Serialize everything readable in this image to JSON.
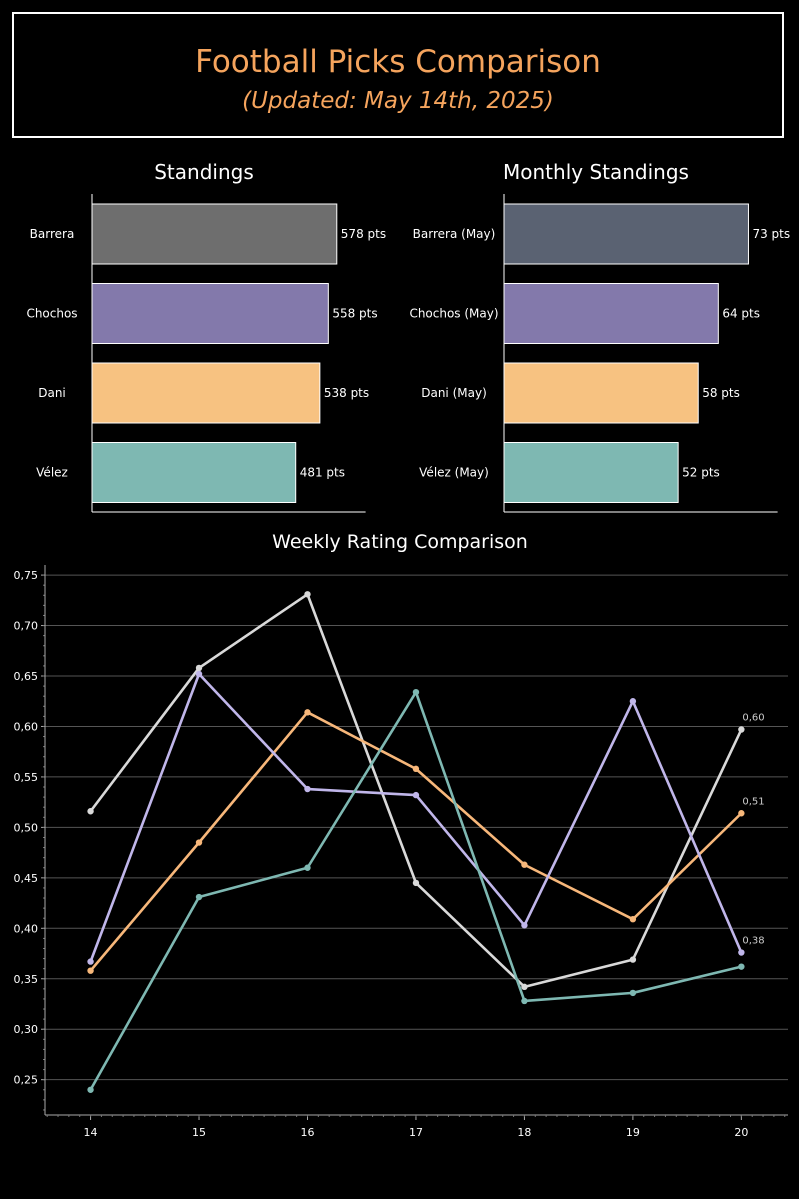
{
  "header": {
    "title": "Football Picks Comparison",
    "subtitle": "(Updated: May 14th, 2025)"
  },
  "chart_data": [
    {
      "type": "bar",
      "orientation": "horizontal",
      "title": "Standings",
      "categories": [
        "Barrera",
        "Chochos",
        "Dani",
        "Vélez"
      ],
      "values": [
        578,
        558,
        538,
        481
      ],
      "value_labels": [
        "578 pts",
        "558 pts",
        "538 pts",
        "481 pts"
      ],
      "colors": [
        "#6e6e6e",
        "#8379ab",
        "#f7c281",
        "#7eb8b2"
      ],
      "xlim": [
        0,
        680
      ]
    },
    {
      "type": "bar",
      "orientation": "horizontal",
      "title": "Monthly Standings",
      "categories": [
        "Barrera (May)",
        "Chochos (May)",
        "Dani (May)",
        "Vélez (May)"
      ],
      "values": [
        73,
        64,
        58,
        52
      ],
      "value_labels": [
        "73 pts",
        "64 pts",
        "58 pts",
        "52 pts"
      ],
      "colors": [
        "#5a6272",
        "#8379ab",
        "#f7c281",
        "#7eb8b2"
      ],
      "xlim": [
        0,
        86
      ]
    },
    {
      "type": "line",
      "title": "Weekly Rating Comparison",
      "x": [
        14,
        15,
        16,
        17,
        18,
        19,
        20
      ],
      "ylim": [
        0.215,
        0.76
      ],
      "xlim": [
        13.58,
        20.43
      ],
      "y_ticks": [
        0.25,
        0.3,
        0.35,
        0.4,
        0.45,
        0.5,
        0.55,
        0.6,
        0.65,
        0.7,
        0.75
      ],
      "y_tick_labels": [
        "0,25",
        "0,30",
        "0,35",
        "0,40",
        "0,45",
        "0,50",
        "0,55",
        "0,60",
        "0,65",
        "0,70",
        "0,75"
      ],
      "x_tick_labels": [
        "14",
        "15",
        "16",
        "17",
        "18",
        "19",
        "20"
      ],
      "grid": "horizontal",
      "series": [
        {
          "color": "#d9d9d9",
          "values": [
            0.516,
            0.658,
            0.731,
            0.445,
            0.342,
            0.369,
            0.597
          ],
          "end_label": "0,60"
        },
        {
          "color": "#f7b77a",
          "values": [
            0.358,
            0.485,
            0.614,
            0.558,
            0.463,
            0.409,
            0.514
          ],
          "end_label": "0,51"
        },
        {
          "color": "#c0b6ea",
          "values": [
            0.367,
            0.652,
            0.538,
            0.532,
            0.403,
            0.625,
            0.376
          ],
          "end_label": "0,38"
        },
        {
          "color": "#7eb8b2",
          "values": [
            0.24,
            0.431,
            0.46,
            0.634,
            0.328,
            0.336,
            0.362
          ],
          "end_label": ""
        }
      ]
    }
  ]
}
